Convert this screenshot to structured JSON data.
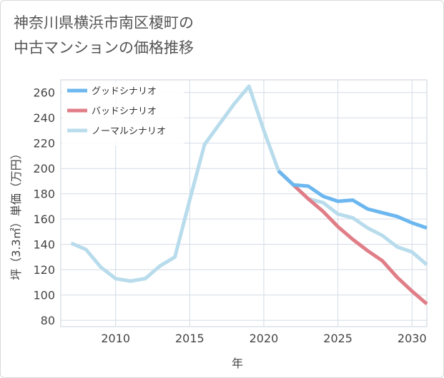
{
  "title_lines": [
    "神奈川県横浜市南区榎町の",
    "中古マンションの価格推移"
  ],
  "chart_data": {
    "type": "line",
    "xlabel": "年",
    "ylabel": "坪（3.3㎡）単価（万円）",
    "xlim": [
      2006.3,
      2031
    ],
    "ylim": [
      75,
      270
    ],
    "xticks": [
      2010,
      2015,
      2020,
      2025,
      2030
    ],
    "yticks": [
      80,
      100,
      120,
      140,
      160,
      180,
      200,
      220,
      240,
      260
    ],
    "grid": true,
    "legend_position": "top-left",
    "series": [
      {
        "name": "グッドシナリオ",
        "color": "#6cb7ef",
        "x": [
          2021,
          2022,
          2023,
          2024,
          2025,
          2026,
          2027,
          2028,
          2029,
          2030,
          2031
        ],
        "values": [
          198,
          187,
          186,
          178,
          174,
          175,
          168,
          165,
          162,
          157,
          153
        ]
      },
      {
        "name": "バッドシナリオ",
        "color": "#e07e88",
        "x": [
          2021,
          2022,
          2023,
          2024,
          2025,
          2026,
          2027,
          2028,
          2029,
          2030,
          2031
        ],
        "values": [
          198,
          187,
          176,
          166,
          154,
          144,
          135,
          127,
          114,
          103,
          93
        ]
      },
      {
        "name": "ノーマルシナリオ",
        "color": "#b8dcec",
        "x": [
          2007,
          2008,
          2009,
          2010,
          2011,
          2012,
          2013,
          2014,
          2015,
          2016,
          2017,
          2018,
          2019,
          2020,
          2021,
          2022,
          2023,
          2024,
          2025,
          2026,
          2027,
          2028,
          2029,
          2030,
          2031
        ],
        "values": [
          141,
          136,
          122,
          113,
          111,
          113,
          123,
          130,
          175,
          219,
          235,
          251,
          265,
          230,
          198,
          187,
          176,
          173,
          164,
          161,
          153,
          147,
          138,
          134,
          124
        ]
      }
    ]
  }
}
